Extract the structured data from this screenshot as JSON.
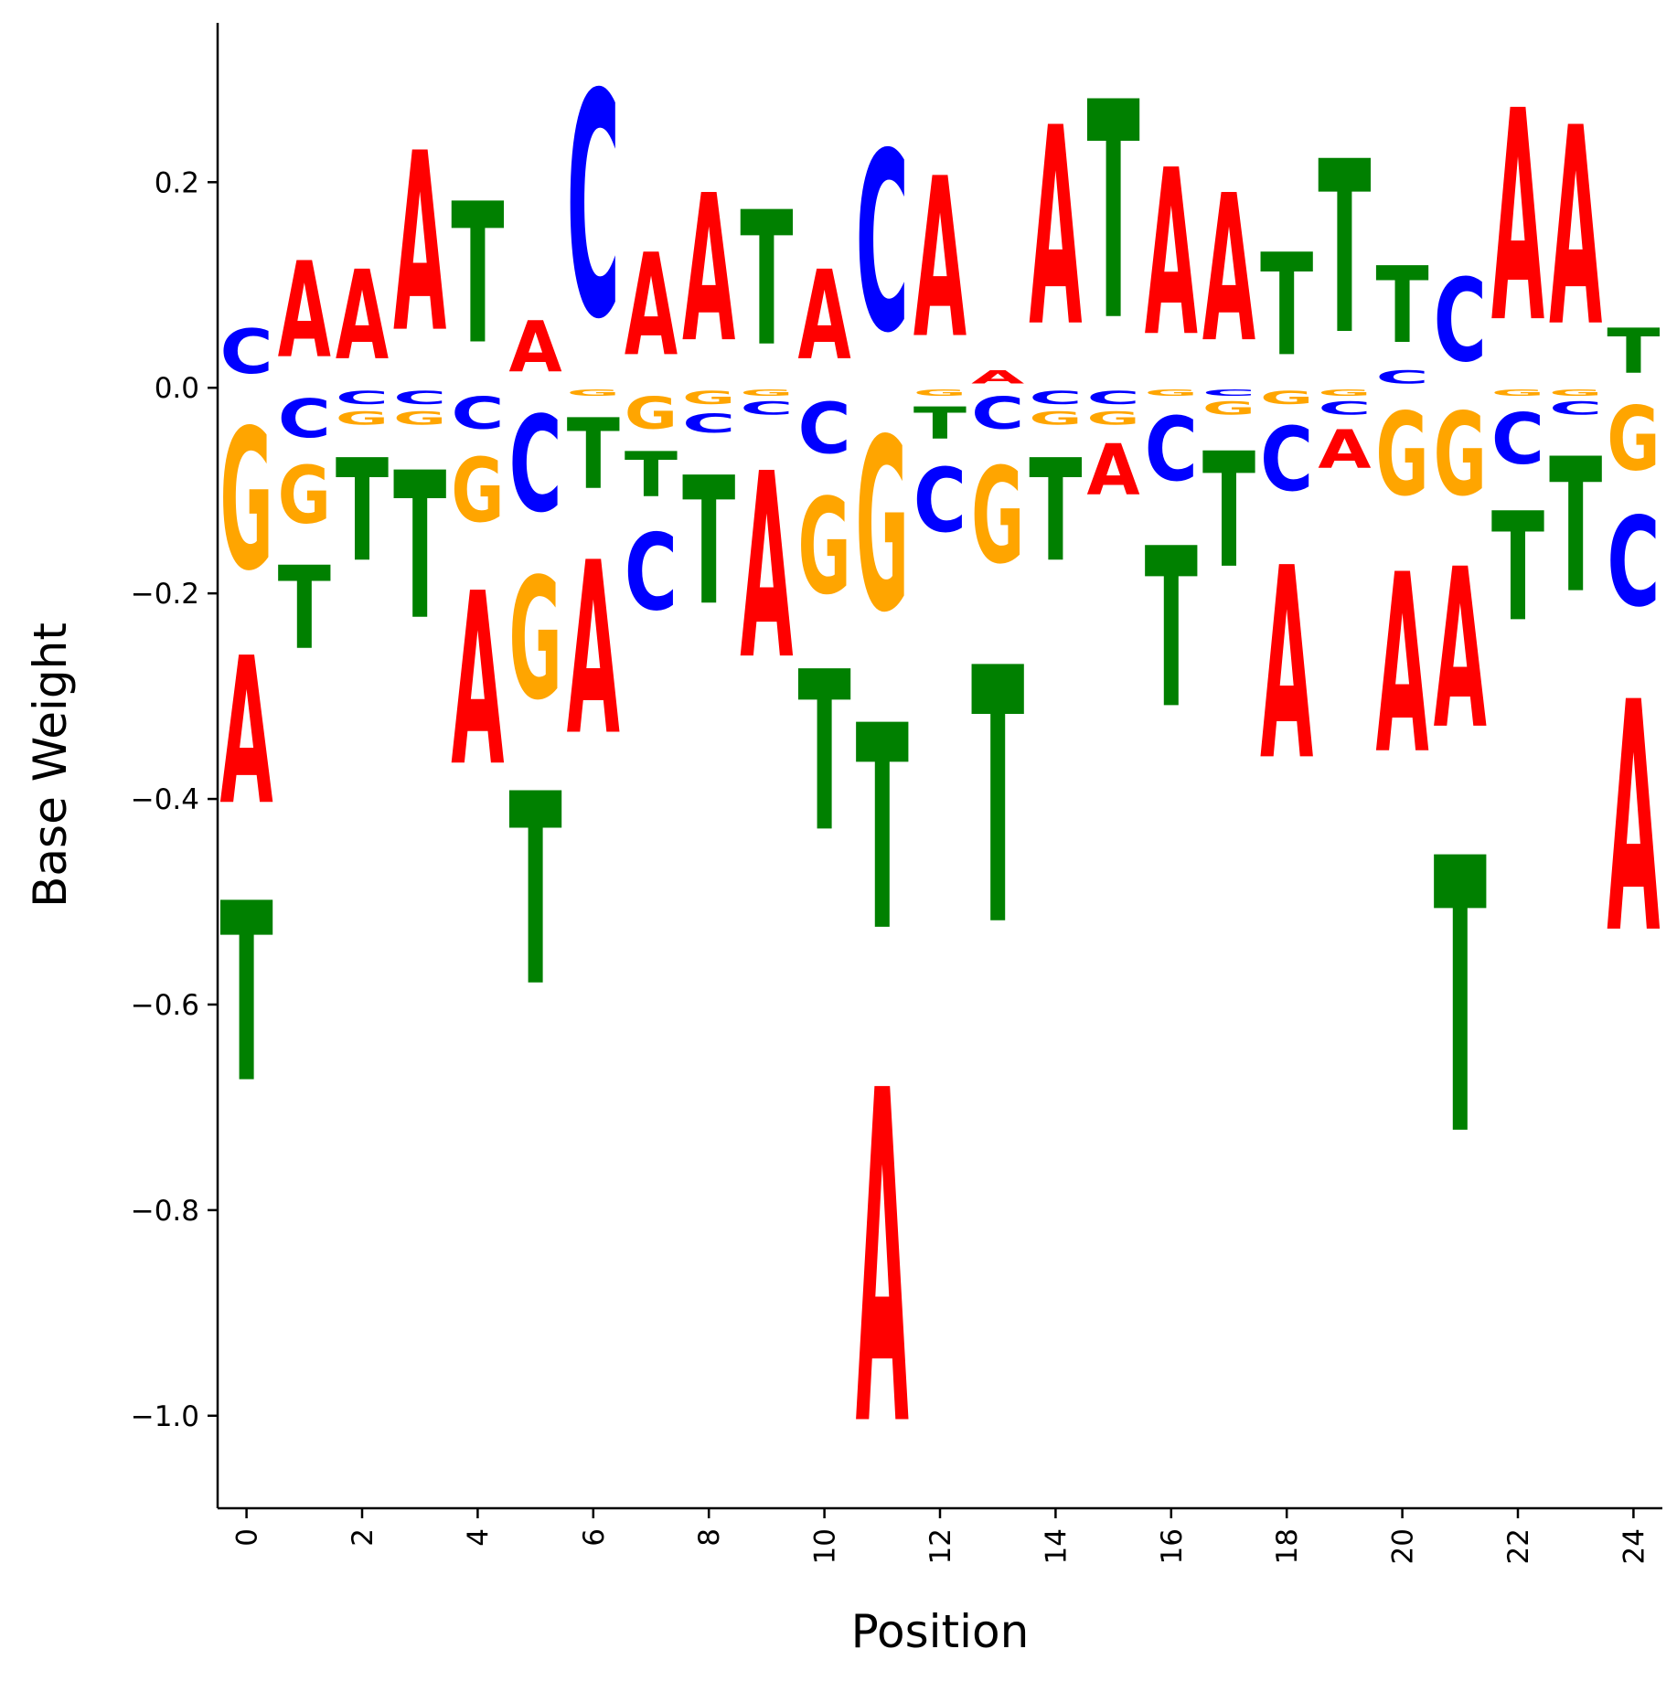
{
  "colors": {
    "A": "#ff0000",
    "C": "#0000ff",
    "G": "#ffa500",
    "T": "#008000",
    "axis": "#000000"
  },
  "chart_data": {
    "type": "sequence-logo",
    "xlabel": "Position",
    "ylabel": "Base Weight",
    "xlim": [
      -0.5,
      24.5
    ],
    "ylim": [
      -1.09,
      0.355
    ],
    "xticks": [
      0,
      2,
      4,
      6,
      8,
      10,
      12,
      14,
      16,
      18,
      20,
      22,
      24
    ],
    "yticks": [
      0.2,
      0.0,
      -0.2,
      -0.4,
      -0.6,
      -0.8,
      -1.0
    ],
    "ytick_labels": [
      "0.2",
      "0.0",
      "−0.2",
      "−0.4",
      "−0.6",
      "−0.8",
      "−1.0"
    ],
    "grid": false,
    "positions": [
      {
        "x": 0,
        "A": -0.23,
        "C": 0.07,
        "G": -0.22,
        "T": -0.28
      },
      {
        "x": 1,
        "A": 0.15,
        "C": -0.06,
        "G": -0.09,
        "T": -0.13
      },
      {
        "x": 2,
        "A": 0.14,
        "C": -0.02,
        "G": -0.02,
        "T": -0.16
      },
      {
        "x": 3,
        "A": 0.28,
        "C": -0.02,
        "G": -0.02,
        "T": -0.23
      },
      {
        "x": 4,
        "A": -0.27,
        "C": -0.05,
        "G": -0.1,
        "T": 0.22
      },
      {
        "x": 5,
        "A": 0.08,
        "C": -0.15,
        "G": -0.19,
        "T": -0.3
      },
      {
        "x": 6,
        "A": -0.27,
        "C": 0.35,
        "G": -0.01,
        "T": -0.11
      },
      {
        "x": 7,
        "A": 0.16,
        "C": -0.12,
        "G": -0.05,
        "T": -0.07
      },
      {
        "x": 8,
        "A": 0.23,
        "C": -0.03,
        "G": -0.02,
        "T": -0.2
      },
      {
        "x": 9,
        "A": -0.29,
        "C": -0.02,
        "G": -0.01,
        "T": 0.21
      },
      {
        "x": 10,
        "A": 0.14,
        "C": -0.08,
        "G": -0.15,
        "T": -0.25
      },
      {
        "x": 11,
        "A": -0.52,
        "C": 0.28,
        "G": -0.27,
        "T": -0.32
      },
      {
        "x": 12,
        "A": 0.25,
        "C": -0.1,
        "G": -0.01,
        "T": -0.05
      },
      {
        "x": 13,
        "A": 0.02,
        "C": -0.05,
        "G": -0.15,
        "T": -0.4
      },
      {
        "x": 14,
        "A": 0.31,
        "C": -0.02,
        "G": -0.02,
        "T": -0.16
      },
      {
        "x": 15,
        "A": -0.08,
        "C": -0.02,
        "G": -0.02,
        "T": 0.34
      },
      {
        "x": 16,
        "A": 0.26,
        "C": -0.1,
        "G": -0.01,
        "T": -0.25
      },
      {
        "x": 17,
        "A": 0.23,
        "C": -0.01,
        "G": -0.02,
        "T": -0.18
      },
      {
        "x": 18,
        "A": -0.3,
        "C": -0.1,
        "G": -0.02,
        "T": 0.16
      },
      {
        "x": 19,
        "A": -0.06,
        "C": -0.02,
        "G": -0.01,
        "T": 0.27
      },
      {
        "x": 20,
        "A": -0.28,
        "C": 0.02,
        "G": -0.13,
        "T": 0.12
      },
      {
        "x": 21,
        "A": -0.25,
        "C": 0.13,
        "G": -0.13,
        "T": -0.43
      },
      {
        "x": 22,
        "A": 0.33,
        "C": -0.08,
        "G": -0.01,
        "T": -0.17
      },
      {
        "x": 23,
        "A": 0.31,
        "C": -0.02,
        "G": -0.01,
        "T": -0.21
      },
      {
        "x": 24,
        "A": -0.36,
        "C": -0.14,
        "G": -0.1,
        "T": 0.07
      }
    ]
  }
}
